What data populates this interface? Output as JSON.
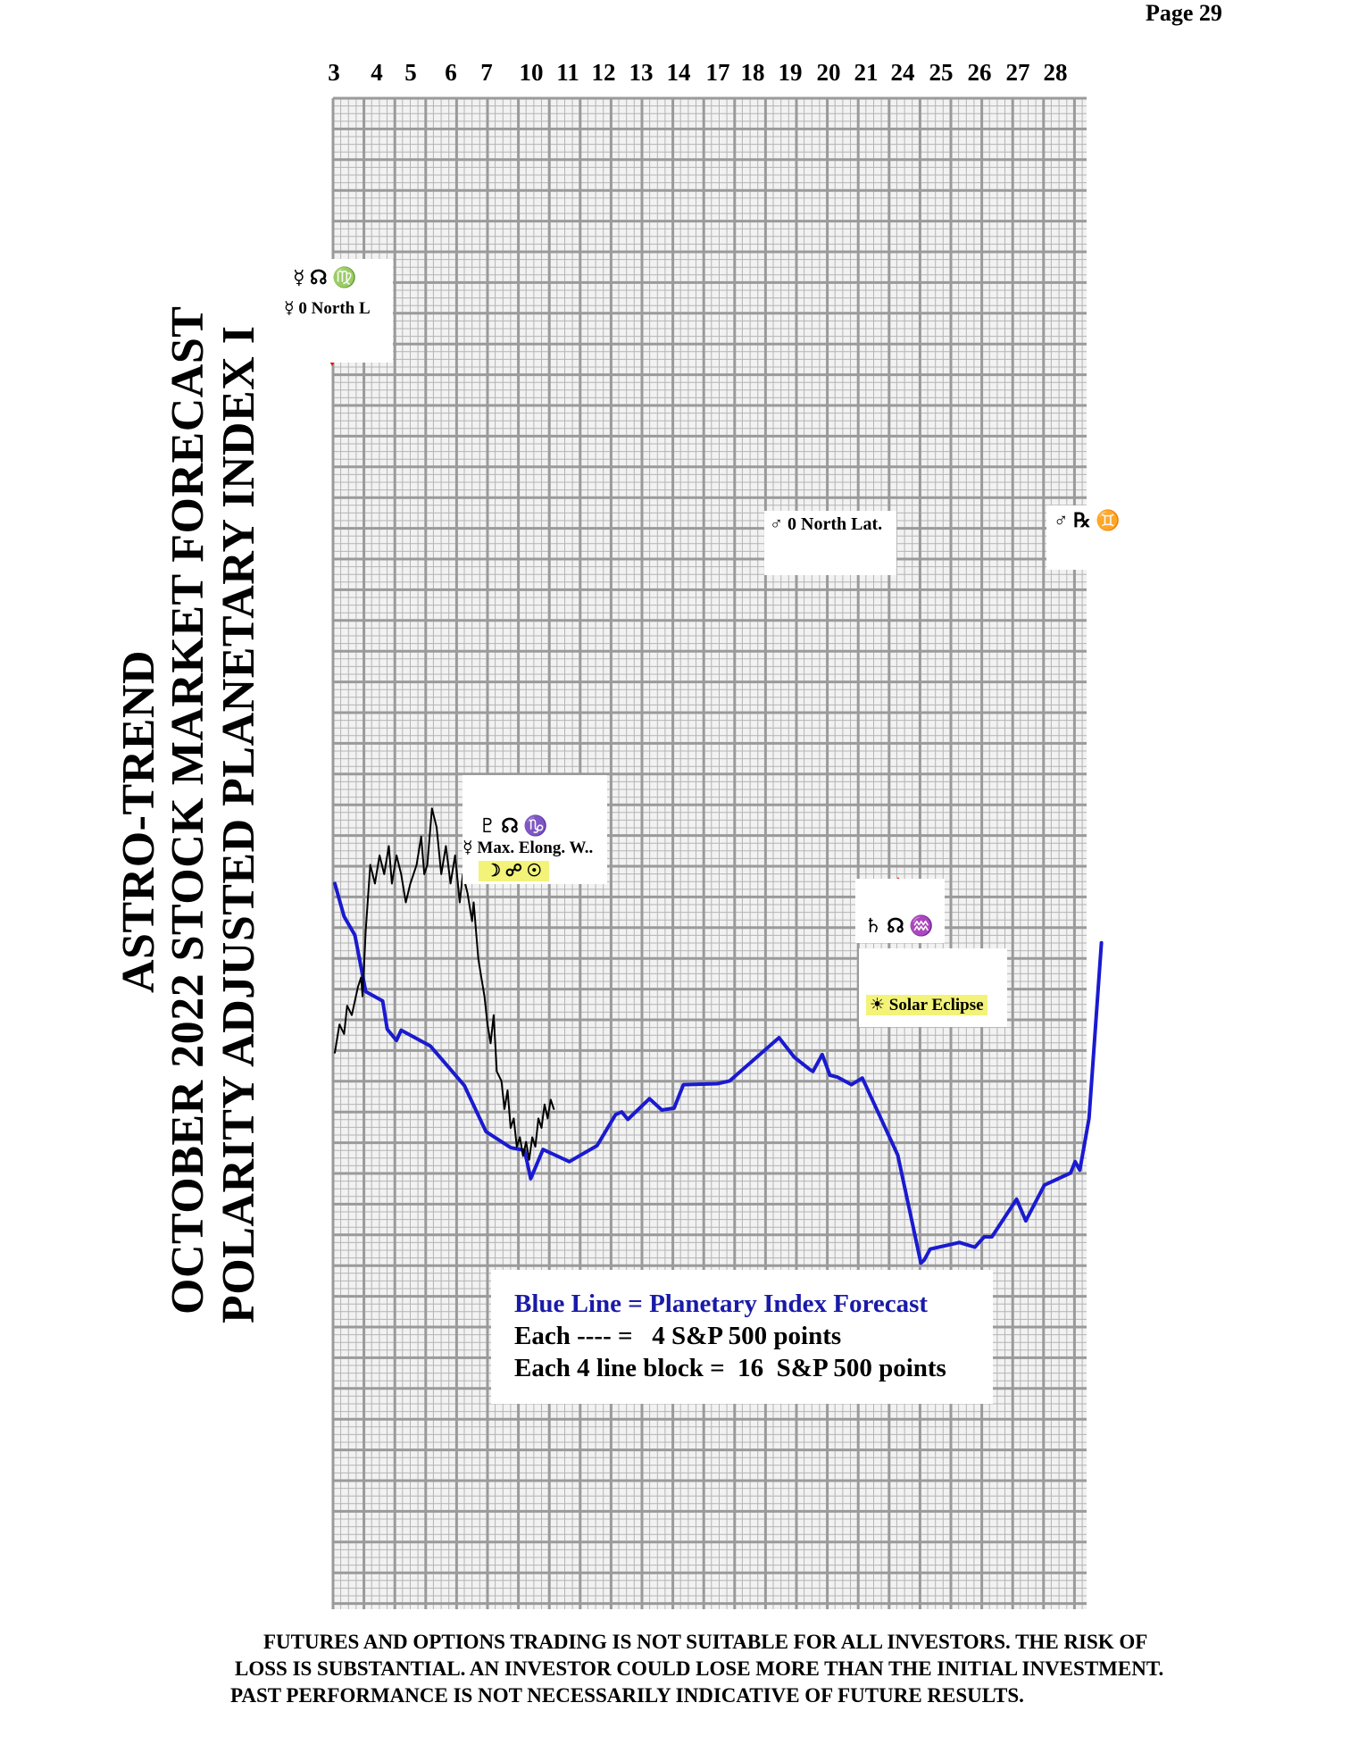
{
  "page": {
    "label": "Page  29"
  },
  "titles": {
    "line1": "ASTRO-TREND",
    "line2": "OCTOBER 2022 STOCK MARKET FORECAST",
    "line3": "POLARITY ADJUSTED PLANETARY INDEX I"
  },
  "legend": {
    "line1": "Blue Line = Planetary Index Forecast",
    "line2": "Each ---- =   4 S&P 500 points",
    "line3": "Each 4 line block =  16  S&P 500 points"
  },
  "disclaimer": {
    "line1": "FUTURES AND OPTIONS TRADING IS NOT SUITABLE FOR ALL INVESTORS.  THE RISK OF",
    "line2": "LOSS IS SUBSTANTIAL.  AN INVESTOR COULD LOSE MORE THAN THE INITIAL INVESTMENT.",
    "line3": "PAST PERFORMANCE IS NOT NECESSARILY INDICATIVE OF FUTURE RESULTS."
  },
  "annotations": {
    "a1_symbols": "☿  ☊  ♍",
    "a1_text": "☿ 0 North L",
    "a2_symbols": "♇  ☊  ♑",
    "a2_text": "☿ Max. Elong. W..",
    "a2_extra": "☽ ☍ ☉",
    "a3_text": "♂ 0 North Lat.",
    "a4_symbols": "♂  ℞  ♊",
    "a5_symbols": "♄  ☊  ♒",
    "a6_text": "☀ Solar Eclipse"
  },
  "colors": {
    "forecast": "#1a1ad0",
    "actual": "#000000",
    "grid": "#9a9a9a",
    "arrow": "#e01010",
    "highlight": "#f3f37a"
  },
  "chart_data": {
    "type": "line",
    "x": [
      "3",
      "4",
      "5",
      "6",
      "7",
      "10",
      "11",
      "12",
      "13",
      "14",
      "17",
      "18",
      "19",
      "20",
      "21",
      "24",
      "25",
      "26",
      "27",
      "28"
    ],
    "series": [
      {
        "name": "Blue Line = Planetary Index Forecast",
        "values": [
          [
            0,
            78
          ],
          [
            0.3,
            74.5
          ],
          [
            0.65,
            72.5
          ],
          [
            1,
            66.5
          ],
          [
            1.55,
            65.5
          ],
          [
            1.7,
            62.5
          ],
          [
            2,
            61.3
          ],
          [
            2.15,
            62.4
          ],
          [
            3.1,
            60.7
          ],
          [
            4.2,
            56.5
          ],
          [
            4.9,
            51.6
          ],
          [
            5.7,
            49.9
          ],
          [
            6.15,
            49.6
          ],
          [
            6.35,
            46.6
          ],
          [
            6.75,
            49.7
          ],
          [
            7.6,
            48.4
          ],
          [
            8.5,
            50.1
          ],
          [
            9.1,
            53.4
          ],
          [
            9.3,
            53.7
          ],
          [
            9.5,
            52.9
          ],
          [
            10.2,
            55.1
          ],
          [
            10.6,
            53.9
          ],
          [
            11,
            54.1
          ],
          [
            11.3,
            56.6
          ],
          [
            12.4,
            56.7
          ],
          [
            12.8,
            57.0
          ],
          [
            14.4,
            61.6
          ],
          [
            14.9,
            59.5
          ],
          [
            15.4,
            58.2
          ],
          [
            15.5,
            58.0
          ],
          [
            15.8,
            59.8
          ],
          [
            16.05,
            57.6
          ],
          [
            16.3,
            57.4
          ],
          [
            16.75,
            56.6
          ],
          [
            17.1,
            57.3
          ],
          [
            18.25,
            49.1
          ],
          [
            19,
            37.6
          ],
          [
            19.1,
            37.9
          ],
          [
            19.3,
            39.1
          ],
          [
            20.25,
            39.8
          ],
          [
            20.75,
            39.3
          ],
          [
            21.05,
            40.4
          ],
          [
            21.3,
            40.4
          ],
          [
            22.1,
            44.4
          ],
          [
            22.4,
            42.1
          ],
          [
            23,
            45.9
          ],
          [
            23.85,
            47.2
          ],
          [
            24,
            48.4
          ],
          [
            24.15,
            47.5
          ],
          [
            24.45,
            53.0
          ],
          [
            24.85,
            71.7
          ]
        ]
      },
      {
        "name": "",
        "values": [
          [
            0,
            60
          ],
          [
            0.15,
            63
          ],
          [
            0.3,
            62
          ],
          [
            0.4,
            65
          ],
          [
            0.55,
            64
          ],
          [
            0.75,
            67
          ],
          [
            0.85,
            68
          ],
          [
            0.9,
            66
          ],
          [
            1,
            73
          ],
          [
            1.15,
            80
          ],
          [
            1.3,
            78
          ],
          [
            1.45,
            81
          ],
          [
            1.6,
            79
          ],
          [
            1.75,
            82
          ],
          [
            1.85,
            78
          ],
          [
            2,
            81
          ],
          [
            2.15,
            79
          ],
          [
            2.3,
            76
          ],
          [
            2.45,
            78
          ],
          [
            2.65,
            80
          ],
          [
            2.8,
            83
          ],
          [
            2.9,
            79
          ],
          [
            3,
            80
          ],
          [
            3.15,
            86
          ],
          [
            3.3,
            84
          ],
          [
            3.45,
            79
          ],
          [
            3.6,
            82
          ],
          [
            3.75,
            78
          ],
          [
            3.9,
            81
          ],
          [
            4.05,
            76
          ],
          [
            4.15,
            79
          ],
          [
            4.3,
            77
          ],
          [
            4.45,
            74
          ],
          [
            4.5,
            76
          ],
          [
            4.65,
            70
          ],
          [
            4.75,
            68
          ],
          [
            4.85,
            66
          ],
          [
            4.95,
            63
          ],
          [
            5.05,
            61
          ],
          [
            5.15,
            64
          ],
          [
            5.25,
            58
          ],
          [
            5.4,
            57
          ],
          [
            5.5,
            54
          ],
          [
            5.6,
            56
          ],
          [
            5.7,
            52
          ],
          [
            5.8,
            53
          ],
          [
            5.9,
            50
          ],
          [
            6,
            51
          ],
          [
            6.1,
            49
          ],
          [
            6.2,
            50.5
          ],
          [
            6.3,
            48.6
          ],
          [
            6.4,
            51
          ],
          [
            6.5,
            50
          ],
          [
            6.6,
            53
          ],
          [
            6.7,
            52
          ],
          [
            6.8,
            54.5
          ],
          [
            6.9,
            53
          ],
          [
            7,
            55
          ],
          [
            7.1,
            54
          ]
        ]
      }
    ],
    "annotations": [
      {
        "day": "3",
        "direction": "down",
        "text": "☿ 0 North L"
      },
      {
        "day": "10",
        "direction": "up",
        "text": "☿ Max. Elong. W.."
      },
      {
        "day": "20",
        "direction": "down",
        "text": "♂ 0 North Lat."
      },
      {
        "day": "24",
        "direction": "up",
        "text": "☀ Solar Eclipse"
      },
      {
        "day": "28",
        "direction": "down",
        "text": "♂ ℞ ♊"
      }
    ]
  }
}
